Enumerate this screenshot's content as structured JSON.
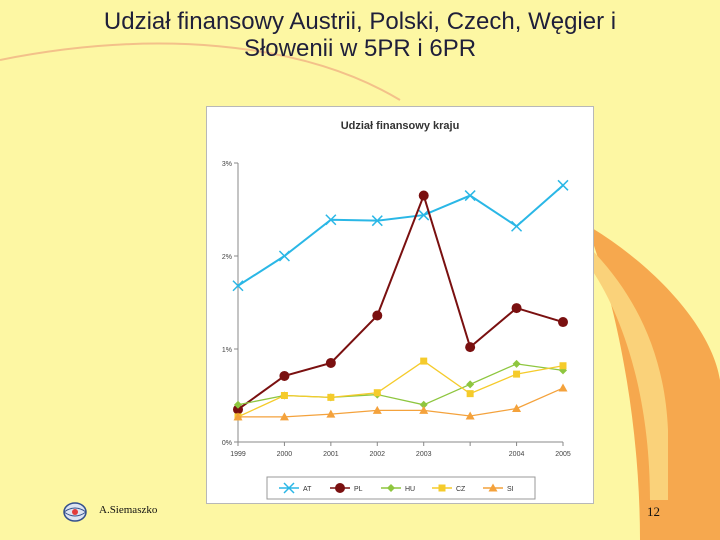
{
  "slide": {
    "title_line1": "Udział finansowy Austrii, Polski, Czech, Węgier i",
    "title_line2": "Słowenii w 5PR i 6PR",
    "author": "A.Siemaszko",
    "page_number": "12"
  },
  "chart_data": {
    "type": "line",
    "title": "Udział finansowy kraju",
    "xlabel": "",
    "ylabel": "",
    "x": [
      "1999",
      "2000",
      "2001",
      "2002",
      "2003",
      "2003",
      "2004",
      "2005"
    ],
    "y_ticks": [
      "0%",
      "1%",
      "2%",
      "3%"
    ],
    "ylim": [
      0,
      3
    ],
    "grid": false,
    "legend_position": "bottom",
    "series": [
      {
        "name": "AT",
        "color": "#2ab7e6",
        "marker": "x",
        "values": [
          1.68,
          2.0,
          2.39,
          2.38,
          2.44,
          2.65,
          2.32,
          2.76
        ]
      },
      {
        "name": "PL",
        "color": "#7a1010",
        "marker": "circle",
        "values": [
          0.35,
          0.71,
          0.85,
          1.36,
          2.65,
          1.02,
          1.44,
          1.29
        ]
      },
      {
        "name": "HU",
        "color": "#8ec63f",
        "marker": "diamond",
        "values": [
          0.4,
          0.5,
          0.48,
          0.51,
          0.4,
          0.62,
          0.84,
          0.77
        ]
      },
      {
        "name": "CZ",
        "color": "#f5cb2b",
        "marker": "square",
        "values": [
          0.27,
          0.5,
          0.48,
          0.53,
          0.87,
          0.52,
          0.73,
          0.82
        ]
      },
      {
        "name": "SI",
        "color": "#f4a23c",
        "marker": "triangle",
        "values": [
          0.27,
          0.27,
          0.3,
          0.34,
          0.34,
          0.28,
          0.36,
          0.58
        ]
      }
    ]
  }
}
